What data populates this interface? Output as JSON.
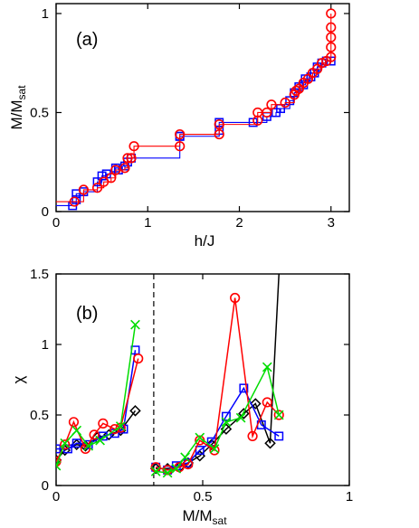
{
  "chart_data": [
    {
      "type": "line",
      "panel_label": "(a)",
      "xlabel": "h/J",
      "ylabel_main": "M/M",
      "ylabel_sub": "sat",
      "xlim": [
        0,
        3.2
      ],
      "ylim": [
        0,
        1.05
      ],
      "xticks": [
        0,
        1,
        2,
        3
      ],
      "xtick_labels": [
        "0",
        "1",
        "2",
        "3"
      ],
      "yticks": [
        0,
        0.5,
        1
      ],
      "ytick_labels": [
        "0",
        "0.5",
        "1"
      ],
      "series": [
        {
          "marker": "square",
          "color": "#0000ff",
          "x": [
            0.18,
            0.22,
            0.22,
            0.3,
            0.45,
            0.5,
            0.55,
            0.65,
            0.68,
            0.75,
            0.78,
            0.82,
            1.35,
            1.35,
            1.78,
            1.78,
            2.15,
            2.3,
            2.4,
            2.45,
            2.55,
            2.6,
            2.65,
            2.7,
            2.72,
            2.78,
            2.82,
            2.85,
            2.9,
            2.95,
            3.0
          ],
          "y": [
            0.03,
            0.06,
            0.09,
            0.1,
            0.15,
            0.18,
            0.19,
            0.22,
            0.21,
            0.23,
            0.25,
            0.27,
            0.38,
            0.38,
            0.41,
            0.45,
            0.45,
            0.48,
            0.5,
            0.52,
            0.56,
            0.6,
            0.63,
            0.64,
            0.67,
            0.68,
            0.7,
            0.73,
            0.75,
            0.76,
            0.76
          ]
        },
        {
          "marker": "circle",
          "color": "#ff0000",
          "x": [
            0.2,
            0.3,
            0.45,
            0.52,
            0.6,
            0.65,
            0.75,
            0.78,
            0.82,
            0.85,
            1.35,
            1.35,
            1.78,
            1.78,
            2.2,
            2.2,
            2.3,
            2.35,
            2.5,
            2.6,
            2.62,
            2.65,
            2.7,
            2.75,
            2.8,
            2.85,
            2.9,
            2.95,
            3.0,
            3.0,
            3.0,
            3.0,
            3.0
          ],
          "y": [
            0.05,
            0.11,
            0.12,
            0.15,
            0.17,
            0.21,
            0.22,
            0.27,
            0.27,
            0.33,
            0.33,
            0.39,
            0.39,
            0.44,
            0.46,
            0.5,
            0.5,
            0.54,
            0.55,
            0.59,
            0.61,
            0.62,
            0.65,
            0.67,
            0.7,
            0.72,
            0.75,
            0.76,
            0.78,
            0.83,
            0.88,
            0.93,
            1.0
          ]
        }
      ]
    },
    {
      "type": "line",
      "panel_label": "(b)",
      "xlabel_main": "M/M",
      "xlabel_sub": "sat",
      "ylabel": "χ",
      "xlim": [
        0,
        1
      ],
      "ylim": [
        0,
        1.5
      ],
      "xticks": [
        0,
        0.5,
        1
      ],
      "xtick_labels": [
        "0",
        "0.5",
        "1"
      ],
      "yticks": [
        0,
        0.5,
        1,
        1.5
      ],
      "ytick_labels": [
        "0",
        "0.5",
        "1",
        "1.5"
      ],
      "vline_x": 0.333,
      "series": [
        {
          "marker": "diamond",
          "color": "#000000",
          "segments": [
            {
              "x": [
                0.0,
                0.03,
                0.07,
                0.1,
                0.14,
                0.18,
                0.22,
                0.27
              ],
              "y": [
                0.18,
                0.25,
                0.29,
                0.28,
                0.34,
                0.36,
                0.39,
                0.53
              ]
            },
            {
              "x": [
                0.34,
                0.38,
                0.42,
                0.45,
                0.49,
                0.53,
                0.58,
                0.64,
                0.68,
                0.73,
                0.76
              ],
              "y": [
                0.12,
                0.12,
                0.13,
                0.16,
                0.21,
                0.29,
                0.4,
                0.51,
                0.58,
                0.3,
                1.5
              ]
            }
          ]
        },
        {
          "marker": "square",
          "color": "#0000ff",
          "segments": [
            {
              "x": [
                0.0,
                0.04,
                0.07,
                0.11,
                0.16,
                0.2,
                0.23,
                0.27
              ],
              "y": [
                0.26,
                0.26,
                0.3,
                0.29,
                0.35,
                0.37,
                0.4,
                0.96
              ]
            },
            {
              "x": [
                0.34,
                0.38,
                0.41,
                0.45,
                0.49,
                0.53,
                0.58,
                0.64,
                0.7,
                0.76
              ],
              "y": [
                0.13,
                0.11,
                0.14,
                0.16,
                0.25,
                0.31,
                0.49,
                0.69,
                0.43,
                0.35
              ]
            }
          ]
        },
        {
          "marker": "circle",
          "color": "#ff0000",
          "segments": [
            {
              "x": [
                0.0,
                0.03,
                0.06,
                0.1,
                0.13,
                0.16,
                0.2,
                0.22,
                0.28
              ],
              "y": [
                0.17,
                0.29,
                0.45,
                0.26,
                0.36,
                0.44,
                0.4,
                0.41,
                0.9
              ]
            },
            {
              "x": [
                0.34,
                0.38,
                0.42,
                0.45,
                0.49,
                0.54,
                0.61,
                0.67,
                0.72,
                0.76
              ],
              "y": [
                0.13,
                0.11,
                0.13,
                0.15,
                0.32,
                0.25,
                1.33,
                0.35,
                0.59,
                0.5
              ]
            }
          ]
        },
        {
          "marker": "x",
          "color": "#00dd00",
          "segments": [
            {
              "x": [
                0.0,
                0.03,
                0.07,
                0.11,
                0.15,
                0.22,
                0.27
              ],
              "y": [
                0.14,
                0.3,
                0.39,
                0.28,
                0.32,
                0.42,
                1.14
              ]
            },
            {
              "x": [
                0.34,
                0.38,
                0.41,
                0.44,
                0.49,
                0.54,
                0.58,
                0.63,
                0.72,
                0.76
              ],
              "y": [
                0.1,
                0.09,
                0.12,
                0.2,
                0.34,
                0.26,
                0.45,
                0.48,
                0.84,
                0.5
              ]
            }
          ]
        }
      ]
    }
  ]
}
